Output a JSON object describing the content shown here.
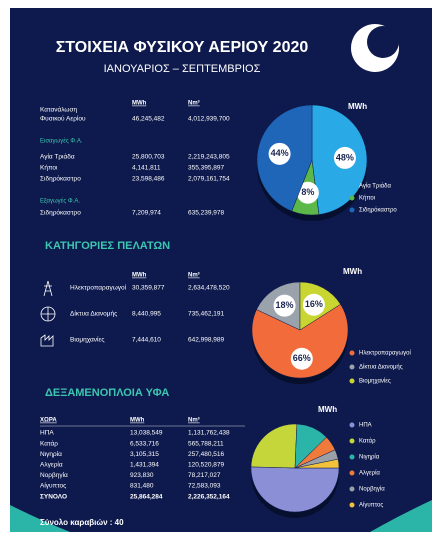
{
  "header": {
    "title": "ΣΤΟΙΧΕΙΑ ΦΥΣΙΚΟΥ ΑΕΡΙΟΥ 2020",
    "subtitle": "ΙΑΝΟΥΑΡΙΟΣ – ΣΕΠΤΕΜΒΡΙΟΣ"
  },
  "consumption": {
    "columns": [
      "MWh",
      "Nm³"
    ],
    "label": [
      "Κατανάλωση",
      "Φυσικού Αερίου"
    ],
    "values": [
      "46,245,482",
      "4,012,939,700"
    ]
  },
  "imports": {
    "title": "Εισαγωγές Φ.Α.",
    "rows": [
      [
        "Αγία Τριάδα",
        "25,800,703",
        "2,219,243,805"
      ],
      [
        "Κήποι",
        "4,141,811",
        "355,395,897"
      ],
      [
        "Σιδηρόκαστρο",
        "23,598,486",
        "2,079,161,754"
      ]
    ]
  },
  "exports": {
    "title": "Εξαγωγές Φ.Α.",
    "rows": [
      [
        "Σιδηρόκαστρο",
        "7,209,974",
        "635,239,978"
      ]
    ]
  },
  "customers": {
    "title": "ΚΑΤΗΓΟΡΙΕΣ ΠΕΛΑΤΩΝ",
    "columns": [
      "MWh",
      "Nm³"
    ],
    "rows": [
      [
        "Ηλεκτροπαραγωγοί",
        "30,359,877",
        "2,634,478,520"
      ],
      [
        "Δίκτυα Διανομής",
        "8,440,995",
        "735,462,191"
      ],
      [
        "Βιομηχανίες",
        "7,444,610",
        "642,998,989"
      ]
    ]
  },
  "lng": {
    "title": "ΔΕΞΑΜΕΝΟΠΛΟΙΑ ΥΦΑ",
    "columns": [
      "ΧΩΡΑ",
      "MWh",
      "Nm³"
    ],
    "rows": [
      [
        "ΗΠΑ",
        "13,038,549",
        "1,131,762,438"
      ],
      [
        "Κατάρ",
        "6,533,716",
        "565,788,211"
      ],
      [
        "Νιγηρία",
        "3,105,315",
        "257,480,516"
      ],
      [
        "Αλγερία",
        "1,431,394",
        "120,520,879"
      ],
      [
        "Νορβηγία",
        "923,830",
        "78,217,027"
      ],
      [
        "Αίγυπτος",
        "831,480",
        "72,583,093"
      ]
    ],
    "total": [
      "ΣΥΝΟΛΟ",
      "25,864,284",
      "2,226,352,164"
    ]
  },
  "footer": "Σύνολο καραβιών : 40",
  "chart_data": [
    {
      "type": "pie",
      "title": "MWh",
      "categories": [
        "Αγία Τριάδα",
        "Κήποι",
        "Σιδηρόκαστρο"
      ],
      "values": [
        48,
        8,
        44
      ],
      "value_labels": [
        "48%",
        "8%",
        "44%"
      ],
      "colors": [
        "#29a9e6",
        "#5cb848",
        "#1f66b8"
      ]
    },
    {
      "type": "pie",
      "title": "MWh",
      "categories": [
        "Ηλεκτροπαραγωγοί",
        "Δίκτυα Διανομής",
        "Βιομηχανίες"
      ],
      "values": [
        66,
        18,
        16
      ],
      "value_labels": [
        "66%",
        "18%",
        "16%"
      ],
      "colors": [
        "#f26b3a",
        "#9aa3ab",
        "#c9d631"
      ]
    },
    {
      "type": "pie",
      "title": "MWh",
      "categories": [
        "ΗΠΑ",
        "Κατάρ",
        "Νιγηρία",
        "Αλγερία",
        "Νορβηγία",
        "Αίγυπτος"
      ],
      "values": [
        13038549,
        6533716,
        3105315,
        1431394,
        923830,
        831480
      ],
      "colors": [
        "#8a8fd6",
        "#c5d63a",
        "#2bb5a8",
        "#f07a3a",
        "#9aa0a8",
        "#f2c23a"
      ]
    }
  ]
}
